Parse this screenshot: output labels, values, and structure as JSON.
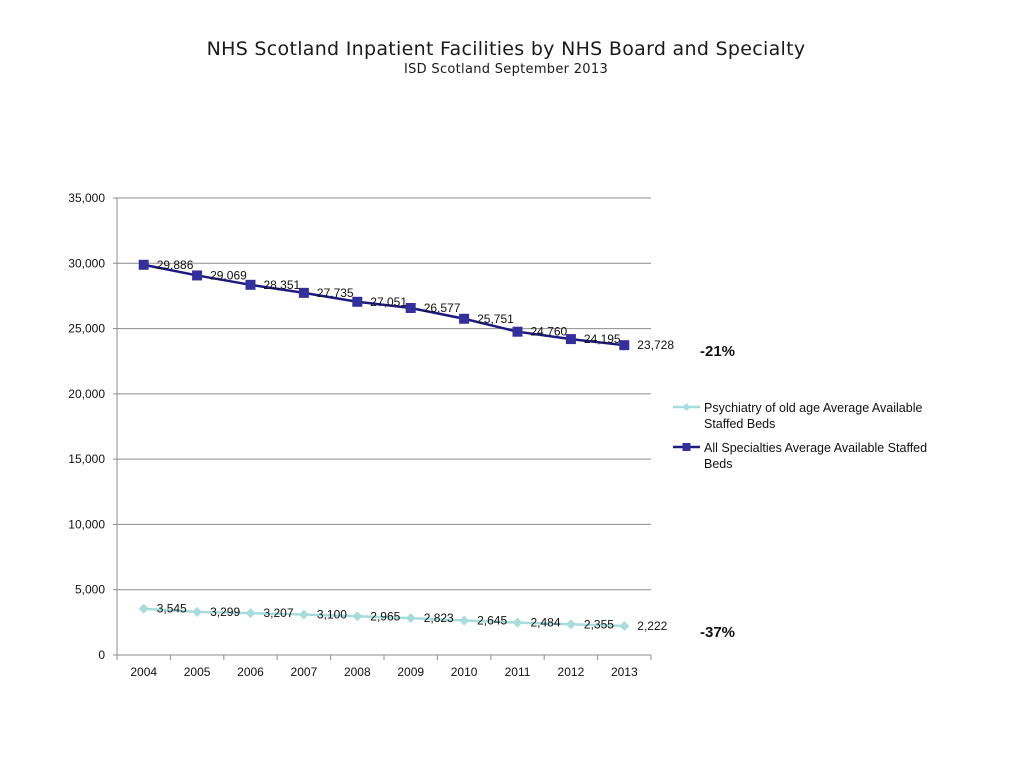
{
  "title": "NHS Scotland  Inpatient Facilities by NHS Board and Specialty",
  "subtitle": "ISD Scotland September 2013",
  "chart_data": {
    "type": "line",
    "title": "NHS Scotland  Inpatient Facilities by NHS Board and Specialty",
    "subtitle": "ISD Scotland September 2013",
    "xlabel": "",
    "ylabel": "",
    "x": [
      "2004",
      "2005",
      "2006",
      "2007",
      "2008",
      "2009",
      "2010",
      "2011",
      "2012",
      "2013"
    ],
    "ylim": [
      0,
      35000
    ],
    "yticks": [
      0,
      5000,
      10000,
      15000,
      20000,
      25000,
      30000,
      35000
    ],
    "ytick_labels": [
      "0",
      "5,000",
      "10,000",
      "15,000",
      "20,000",
      "25,000",
      "30,000",
      "35,000"
    ],
    "grid": true,
    "legend_position": "right",
    "series": [
      {
        "name": "Psychiatry of old age Average Available Staffed Beds",
        "legend_lines": [
          "Psychiatry of old age Average Available",
          "Staffed Beds"
        ],
        "color": "#a8dcdc",
        "marker": "diamond",
        "values": [
          3545,
          3299,
          3207,
          3100,
          2965,
          2823,
          2645,
          2484,
          2355,
          2222
        ],
        "labels": [
          "3,545",
          "3,299",
          "3,207",
          "3,100",
          "2,965",
          "2,823",
          "2,645",
          "2,484",
          "2,355",
          "2,222"
        ],
        "change_label": "-37%"
      },
      {
        "name": "All Specialties Average Available Staffed Beds",
        "legend_lines": [
          "All Specialties Average Available Staffed",
          "Beds"
        ],
        "color": "#1f1a80",
        "marker_color": "#353099",
        "marker": "square",
        "values": [
          29886,
          29069,
          28351,
          27735,
          27051,
          26577,
          25751,
          24760,
          24195,
          23728
        ],
        "labels": [
          "29,886",
          "29,069",
          "28,351",
          "27,735",
          "27,051",
          "26,577",
          "25,751",
          "24,760",
          "24,195",
          "23,728"
        ],
        "change_label": "-21%"
      }
    ]
  }
}
